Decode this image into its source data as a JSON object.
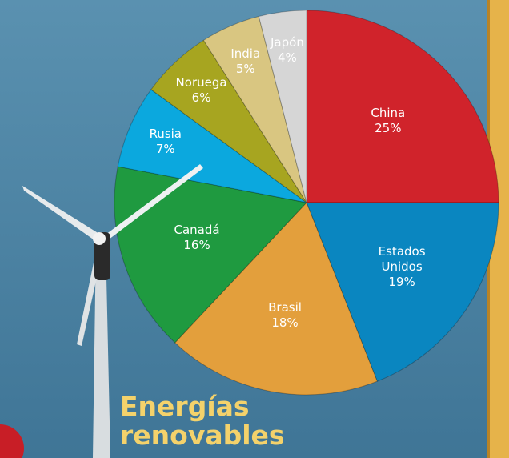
{
  "chart_data": {
    "type": "pie",
    "title": "Energías renovables",
    "categories": [
      "China",
      "Estados Unidos",
      "Brasil",
      "Canadá",
      "Rusia",
      "Noruega",
      "India",
      "Japón"
    ],
    "values": [
      25,
      19,
      18,
      16,
      7,
      6,
      5,
      4
    ],
    "value_labels": [
      "25%",
      "19%",
      "18%",
      "16%",
      "7%",
      "6%",
      "5%",
      "4%"
    ],
    "colors": [
      "#d0232b",
      "#0a86c0",
      "#e39f3c",
      "#1f9a40",
      "#0ba8de",
      "#a7a520",
      "#d9c681",
      "#d6d6d6"
    ]
  }
}
